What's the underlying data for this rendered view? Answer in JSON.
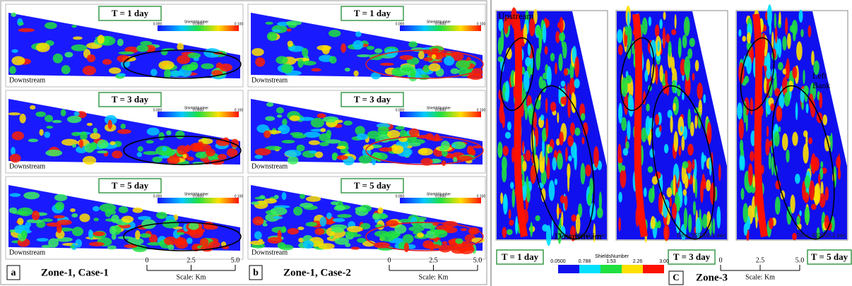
{
  "panels": [
    {
      "id": "a",
      "caption": "Zone-1, Case-1",
      "ellipse": "#000000",
      "maps": [
        {
          "time": "T = 1 day",
          "legend_title": "ShieldsNumber",
          "legend_ticks": [
            "0.000",
            "0.0500",
            "0.100"
          ],
          "label": "Downstream"
        },
        {
          "time": "T = 3 day",
          "legend_title": "ShieldsNumber",
          "legend_ticks": [
            "0.000",
            "0.0500",
            "0.100"
          ],
          "label": "Downstream"
        },
        {
          "time": "T = 5 day",
          "legend_title": "ShieldsNumber",
          "legend_ticks": [
            "0.000",
            "0.0500",
            "0.100"
          ],
          "label": "Downstream"
        }
      ],
      "scale": {
        "ticks": [
          "0",
          "2.5",
          "5.0"
        ],
        "label": "Scale: Km"
      }
    },
    {
      "id": "b",
      "caption": "Zone-1, Case-2",
      "ellipse": "#e02020",
      "maps": [
        {
          "time": "T = 1 day",
          "legend_title": "ShieldsNumber",
          "legend_ticks": [
            "0.000",
            "0.0500",
            "0.100"
          ],
          "label": "Downstream"
        },
        {
          "time": "T = 3 day",
          "legend_title": "ShieldsNumber",
          "legend_ticks": [
            "0.000",
            "0.0500",
            "0.100"
          ],
          "label": "Downstream"
        },
        {
          "time": "T = 5 day",
          "legend_title": "ShieldsNumber",
          "legend_ticks": [
            "0.000",
            "0.0500",
            "0.100"
          ],
          "label": "Downstream"
        }
      ],
      "scale": {
        "ticks": [
          "0",
          "2.5",
          "5.0"
        ],
        "label": "Scale: Km"
      }
    }
  ],
  "zone3": {
    "id": "C",
    "caption": "Zone-3",
    "upstream": "Upstream",
    "downstream": "Downstream",
    "left_bank": [
      "Left",
      "Bank"
    ],
    "maps": [
      {
        "time": "T = 1 day",
        "stamp": "Time: 86400.1 sec"
      },
      {
        "time": "T = 3 day",
        "stamp": "Time: 259200.1 sec"
      },
      {
        "time": "T = 5 day",
        "stamp": "Time: 432000.1 sec"
      }
    ],
    "legend_title": "ShieldsNumber",
    "legend_ticks": [
      "0.0500",
      "0.788",
      "1.53",
      "2.26",
      "3.00"
    ],
    "scale": {
      "ticks": [
        "0",
        "2.5",
        "5.0"
      ],
      "label": "Scale: Km"
    }
  }
}
